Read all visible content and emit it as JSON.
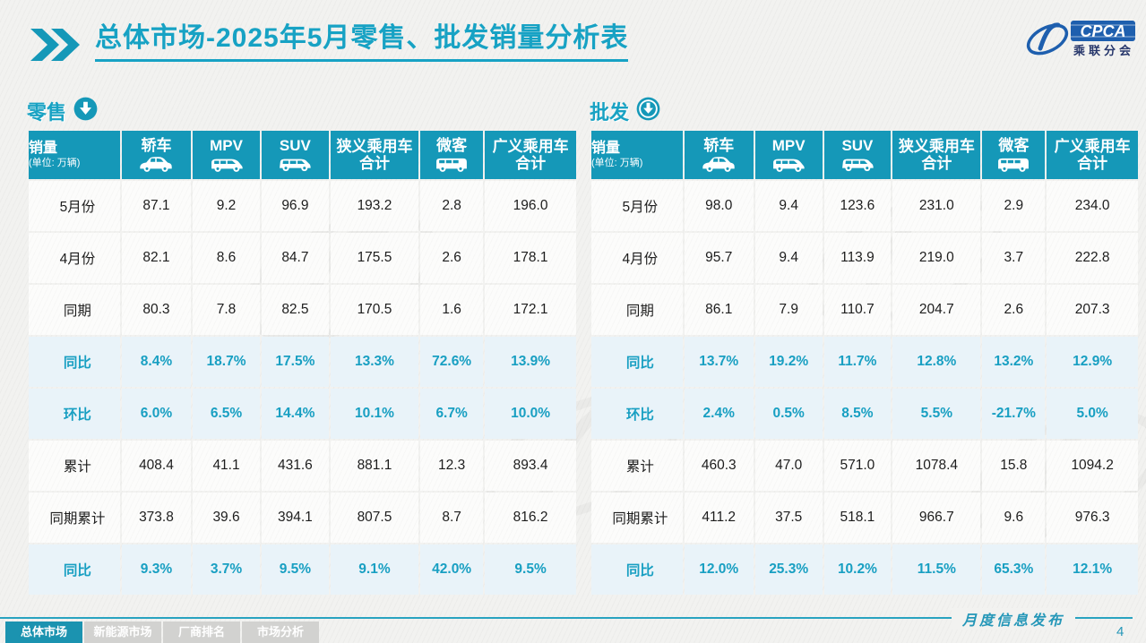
{
  "slide": {
    "title": {
      "bold": "总体市场",
      "rest": "-2025年5月零售、批发销量分析表"
    },
    "logo": {
      "name": "CPCA",
      "subtitle": "乘联分会"
    }
  },
  "columns": {
    "label_title": "销量",
    "label_unit": "(单位: 万辆)",
    "cols": [
      {
        "label": "轿车",
        "label2": "",
        "icon": "sedan-icon"
      },
      {
        "label": "MPV",
        "label2": "",
        "icon": "mpv-icon"
      },
      {
        "label": "SUV",
        "label2": "",
        "icon": "suv-icon"
      },
      {
        "label": "狭义乘用车",
        "label2": "合计",
        "icon": ""
      },
      {
        "label": "微客",
        "label2": "",
        "icon": "microvan-icon"
      },
      {
        "label": "广义乘用车",
        "label2": "合计",
        "icon": ""
      }
    ]
  },
  "tables": [
    {
      "id": "retail",
      "section_label": "零售",
      "section_icon": "download-circle-icon",
      "rows": [
        {
          "label": "5月份",
          "type": "normal",
          "values": [
            "87.1",
            "9.2",
            "96.9",
            "193.2",
            "2.8",
            "196.0"
          ]
        },
        {
          "label": "4月份",
          "type": "normal",
          "values": [
            "82.1",
            "8.6",
            "84.7",
            "175.5",
            "2.6",
            "178.1"
          ]
        },
        {
          "label": "同期",
          "type": "normal",
          "values": [
            "80.3",
            "7.8",
            "82.5",
            "170.5",
            "1.6",
            "172.1"
          ]
        },
        {
          "label": "同比",
          "type": "percent",
          "values": [
            "8.4%",
            "18.7%",
            "17.5%",
            "13.3%",
            "72.6%",
            "13.9%"
          ]
        },
        {
          "label": "环比",
          "type": "percent",
          "values": [
            "6.0%",
            "6.5%",
            "14.4%",
            "10.1%",
            "6.7%",
            "10.0%"
          ]
        },
        {
          "label": "累计",
          "type": "normal",
          "values": [
            "408.4",
            "41.1",
            "431.6",
            "881.1",
            "12.3",
            "893.4"
          ]
        },
        {
          "label": "同期累计",
          "type": "normal",
          "values": [
            "373.8",
            "39.6",
            "394.1",
            "807.5",
            "8.7",
            "816.2"
          ]
        },
        {
          "label": "同比",
          "type": "percent",
          "values": [
            "9.3%",
            "3.7%",
            "9.5%",
            "9.1%",
            "42.0%",
            "9.5%"
          ]
        }
      ]
    },
    {
      "id": "wholesale",
      "section_label": "批发",
      "section_icon": "download-circle-icon",
      "rows": [
        {
          "label": "5月份",
          "type": "normal",
          "values": [
            "98.0",
            "9.4",
            "123.6",
            "231.0",
            "2.9",
            "234.0"
          ]
        },
        {
          "label": "4月份",
          "type": "normal",
          "values": [
            "95.7",
            "9.4",
            "113.9",
            "219.0",
            "3.7",
            "222.8"
          ]
        },
        {
          "label": "同期",
          "type": "normal",
          "values": [
            "86.1",
            "7.9",
            "110.7",
            "204.7",
            "2.6",
            "207.3"
          ]
        },
        {
          "label": "同比",
          "type": "percent",
          "values": [
            "13.7%",
            "19.2%",
            "11.7%",
            "12.8%",
            "13.2%",
            "12.9%"
          ]
        },
        {
          "label": "环比",
          "type": "percent",
          "values": [
            "2.4%",
            "0.5%",
            "8.5%",
            "5.5%",
            "-21.7%",
            "5.0%"
          ]
        },
        {
          "label": "累计",
          "type": "normal",
          "values": [
            "460.3",
            "47.0",
            "571.0",
            "1078.4",
            "15.8",
            "1094.2"
          ]
        },
        {
          "label": "同期累计",
          "type": "normal",
          "values": [
            "411.2",
            "37.5",
            "518.1",
            "966.7",
            "9.6",
            "976.3"
          ]
        },
        {
          "label": "同比",
          "type": "percent",
          "values": [
            "12.0%",
            "25.3%",
            "10.2%",
            "11.5%",
            "65.3%",
            "12.1%"
          ]
        }
      ]
    }
  ],
  "footer": {
    "tabs": [
      {
        "label": "总体市场",
        "active": true
      },
      {
        "label": "新能源市场",
        "active": false
      },
      {
        "label": "厂商排名",
        "active": false
      },
      {
        "label": "市场分析",
        "active": false
      }
    ],
    "publish_label": "月度信息发布",
    "page_number": "4"
  },
  "colors": {
    "accent_teal": "#1598B8",
    "percent_text": "#189FC2",
    "percent_row_bg": "#E9F3F9",
    "logo_blue": "#1E5FAE",
    "page_bg": "#F2F2F0"
  }
}
